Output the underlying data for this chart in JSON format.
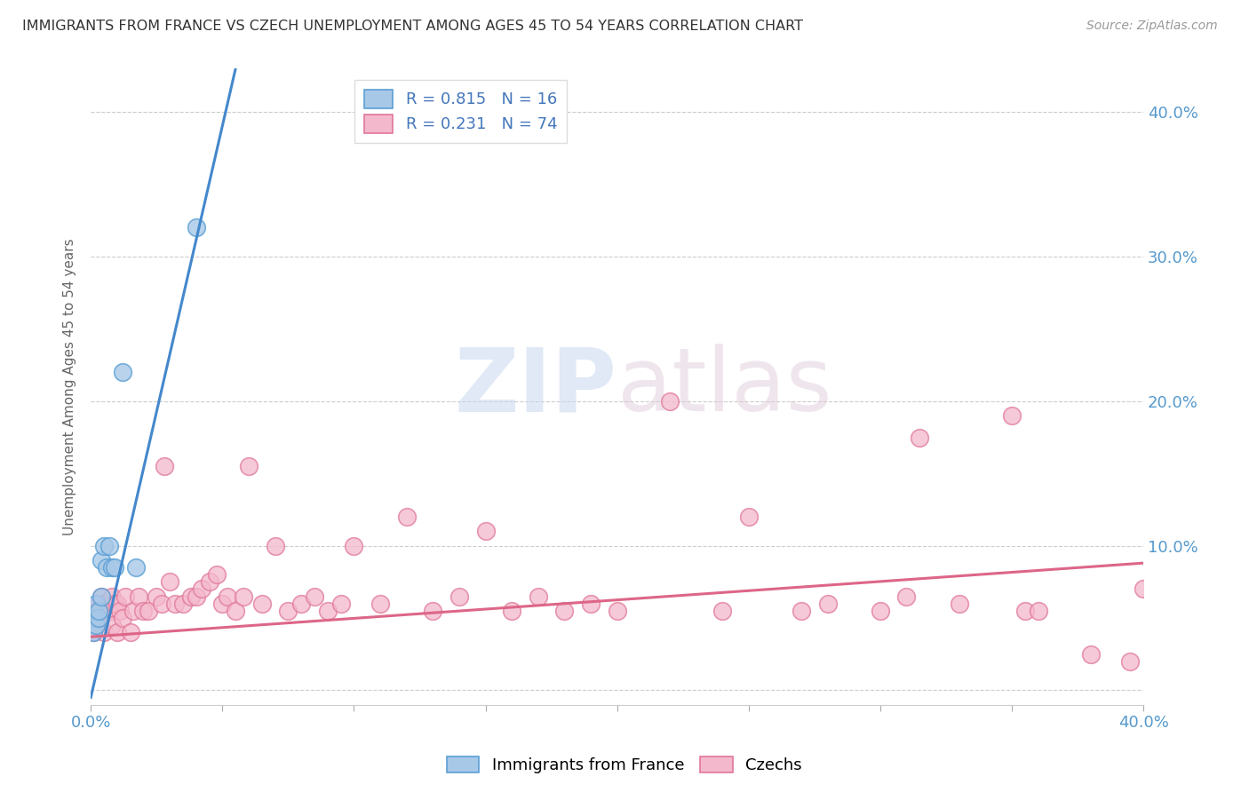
{
  "title": "IMMIGRANTS FROM FRANCE VS CZECH UNEMPLOYMENT AMONG AGES 45 TO 54 YEARS CORRELATION CHART",
  "source": "Source: ZipAtlas.com",
  "ylabel": "Unemployment Among Ages 45 to 54 years",
  "xlim": [
    0.0,
    0.4
  ],
  "ylim": [
    -0.01,
    0.43
  ],
  "ytick_positions": [
    0.0,
    0.1,
    0.2,
    0.3,
    0.4
  ],
  "ytick_labels_right": [
    "",
    "10.0%",
    "20.0%",
    "30.0%",
    "40.0%"
  ],
  "xtick_positions": [
    0.0,
    0.05,
    0.1,
    0.15,
    0.2,
    0.25,
    0.3,
    0.35,
    0.4
  ],
  "xtick_labels": [
    "0.0%",
    "",
    "",
    "",
    "",
    "",
    "",
    "",
    "40.0%"
  ],
  "blue_fill": "#a8c8e8",
  "blue_edge": "#5a9fd4",
  "pink_fill": "#f4b8cc",
  "pink_edge": "#e07898",
  "blue_line_color": "#4488cc",
  "pink_line_color": "#dd6688",
  "legend_R1": "R = 0.815",
  "legend_N1": "N = 16",
  "legend_R2": "R = 0.231",
  "legend_N2": "N = 74",
  "label1": "Immigrants from France",
  "label2": "Czechs",
  "watermark_zip": "ZIP",
  "watermark_atlas": "atlas",
  "blue_line_x0": 0.0,
  "blue_line_y0": -0.005,
  "blue_line_x1": 0.055,
  "blue_line_y1": 0.43,
  "pink_line_x0": 0.0,
  "pink_line_y0": 0.037,
  "pink_line_x1": 0.4,
  "pink_line_y1": 0.088,
  "blue_scatter_x": [
    0.001,
    0.001,
    0.002,
    0.002,
    0.003,
    0.003,
    0.004,
    0.004,
    0.005,
    0.006,
    0.007,
    0.008,
    0.009,
    0.012,
    0.017,
    0.04
  ],
  "blue_scatter_y": [
    0.04,
    0.05,
    0.045,
    0.06,
    0.05,
    0.055,
    0.065,
    0.09,
    0.1,
    0.085,
    0.1,
    0.085,
    0.085,
    0.22,
    0.085,
    0.32
  ],
  "pink_scatter_x": [
    0.001,
    0.001,
    0.002,
    0.002,
    0.003,
    0.003,
    0.004,
    0.004,
    0.005,
    0.005,
    0.006,
    0.007,
    0.008,
    0.008,
    0.009,
    0.01,
    0.01,
    0.011,
    0.012,
    0.013,
    0.015,
    0.016,
    0.018,
    0.02,
    0.022,
    0.025,
    0.027,
    0.028,
    0.03,
    0.032,
    0.035,
    0.038,
    0.04,
    0.042,
    0.045,
    0.048,
    0.05,
    0.052,
    0.055,
    0.058,
    0.06,
    0.065,
    0.07,
    0.075,
    0.08,
    0.085,
    0.09,
    0.095,
    0.1,
    0.11,
    0.12,
    0.13,
    0.14,
    0.15,
    0.16,
    0.17,
    0.18,
    0.19,
    0.2,
    0.22,
    0.24,
    0.25,
    0.27,
    0.28,
    0.3,
    0.31,
    0.315,
    0.33,
    0.35,
    0.355,
    0.36,
    0.38,
    0.395,
    0.4
  ],
  "pink_scatter_y": [
    0.04,
    0.05,
    0.045,
    0.055,
    0.05,
    0.06,
    0.055,
    0.065,
    0.04,
    0.06,
    0.058,
    0.055,
    0.045,
    0.065,
    0.06,
    0.04,
    0.06,
    0.055,
    0.05,
    0.065,
    0.04,
    0.055,
    0.065,
    0.055,
    0.055,
    0.065,
    0.06,
    0.155,
    0.075,
    0.06,
    0.06,
    0.065,
    0.065,
    0.07,
    0.075,
    0.08,
    0.06,
    0.065,
    0.055,
    0.065,
    0.155,
    0.06,
    0.1,
    0.055,
    0.06,
    0.065,
    0.055,
    0.06,
    0.1,
    0.06,
    0.12,
    0.055,
    0.065,
    0.11,
    0.055,
    0.065,
    0.055,
    0.06,
    0.055,
    0.2,
    0.055,
    0.12,
    0.055,
    0.06,
    0.055,
    0.065,
    0.175,
    0.06,
    0.19,
    0.055,
    0.055,
    0.025,
    0.02,
    0.07
  ]
}
